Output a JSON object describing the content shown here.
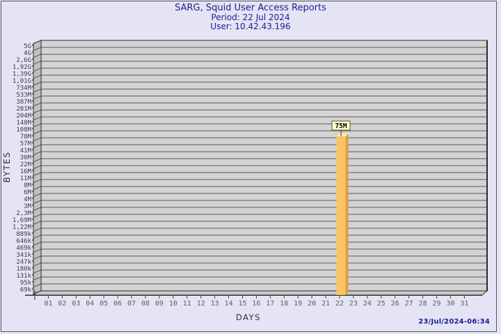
{
  "header": {
    "title": "SARG, Squid User Access Reports",
    "period_line": "Period: 22 Jul 2024",
    "user_line": "User: 10.42.43.196"
  },
  "footer": {
    "timestamp": "23/Jul/2024-06:34"
  },
  "colors": {
    "page_background": "#e4e4f5",
    "title_text": "#1c1c8f",
    "plot_band": "#d3d3d3",
    "plot_wall": "#bfbfbf",
    "plot_floor": "#c9c9c9",
    "gridline": "#5a5a5a",
    "frame": "#2b2b2b",
    "tick": "#3f3f3f",
    "bar_front": "#fdc463",
    "bar_side": "#dda13a",
    "bar_top": "#ffedb0",
    "flag_background": "#ffffd2",
    "flag_border": "#70702c"
  },
  "chart_data": {
    "type": "bar",
    "title": "SARG, Squid User Access Reports",
    "period": "22 Jul 2024",
    "user": "10.42.43.196",
    "xlabel": "DAYS",
    "ylabel": "BYTES",
    "y_scale": "log",
    "grid": true,
    "y_tick_labels_top_to_bottom": [
      "5G",
      "4G",
      "2,6G",
      "1,92G",
      "1,39G",
      "1,01G",
      "734M",
      "533M",
      "387M",
      "281M",
      "204M",
      "148M",
      "108M",
      "78M",
      "57M",
      "41M",
      "30M",
      "22M",
      "16M",
      "11M",
      "8M",
      "6M",
      "4M",
      "3M",
      "2,3M",
      "1,69M",
      "1,22M",
      "889k",
      "646k",
      "469k",
      "341k",
      "247k",
      "180k",
      "131k",
      "95k",
      "69k"
    ],
    "x_tick_labels": [
      "01",
      "02",
      "03",
      "04",
      "05",
      "06",
      "07",
      "08",
      "09",
      "10",
      "11",
      "12",
      "13",
      "14",
      "15",
      "16",
      "17",
      "18",
      "19",
      "20",
      "21",
      "22",
      "23",
      "24",
      "25",
      "26",
      "27",
      "28",
      "29",
      "30",
      "31"
    ],
    "categories": [
      "01",
      "02",
      "03",
      "04",
      "05",
      "06",
      "07",
      "08",
      "09",
      "10",
      "11",
      "12",
      "13",
      "14",
      "15",
      "16",
      "17",
      "18",
      "19",
      "20",
      "21",
      "22",
      "23",
      "24",
      "25",
      "26",
      "27",
      "28",
      "29",
      "30",
      "31"
    ],
    "values_bytes": [
      0,
      0,
      0,
      0,
      0,
      0,
      0,
      0,
      0,
      0,
      0,
      0,
      0,
      0,
      0,
      0,
      0,
      0,
      0,
      0,
      0,
      75000000,
      0,
      0,
      0,
      0,
      0,
      0,
      0,
      0,
      0
    ],
    "bars": [
      {
        "category": "22",
        "value_label": "75M",
        "value_bytes": 75000000
      }
    ]
  }
}
